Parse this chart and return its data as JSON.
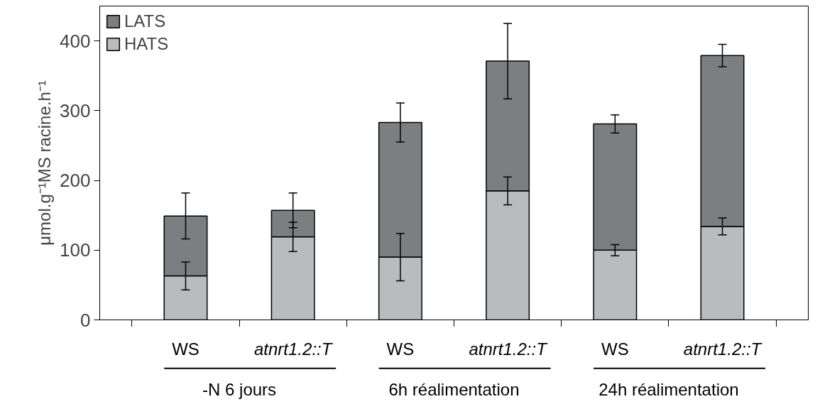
{
  "chart_data": {
    "type": "bar",
    "stacked": true,
    "categories": [
      "WS",
      "atnrt1.2::T",
      "WS",
      "atnrt1.2::T",
      "WS",
      "atnrt1.2::T"
    ],
    "series": [
      {
        "name": "HATS",
        "color": "#b8bcbe",
        "values": [
          63,
          119,
          90,
          185,
          100,
          134
        ],
        "errors": [
          20,
          21,
          34,
          20,
          8,
          12
        ]
      },
      {
        "name": "LATS",
        "color": "#7c7f82",
        "values": [
          86,
          38,
          193,
          186,
          181,
          245
        ],
        "errors": [
          33,
          25,
          28,
          54,
          13,
          16
        ]
      }
    ],
    "ylabel": "μmol.g⁻¹MS racine.h⁻¹",
    "ylim": [
      0,
      450
    ],
    "yticks": [
      0,
      100,
      200,
      300,
      400
    ],
    "annotations": [
      "-N 6 jours",
      "6h réalimentation",
      "24h réalimentation"
    ],
    "legend": "top left",
    "grid": false
  }
}
